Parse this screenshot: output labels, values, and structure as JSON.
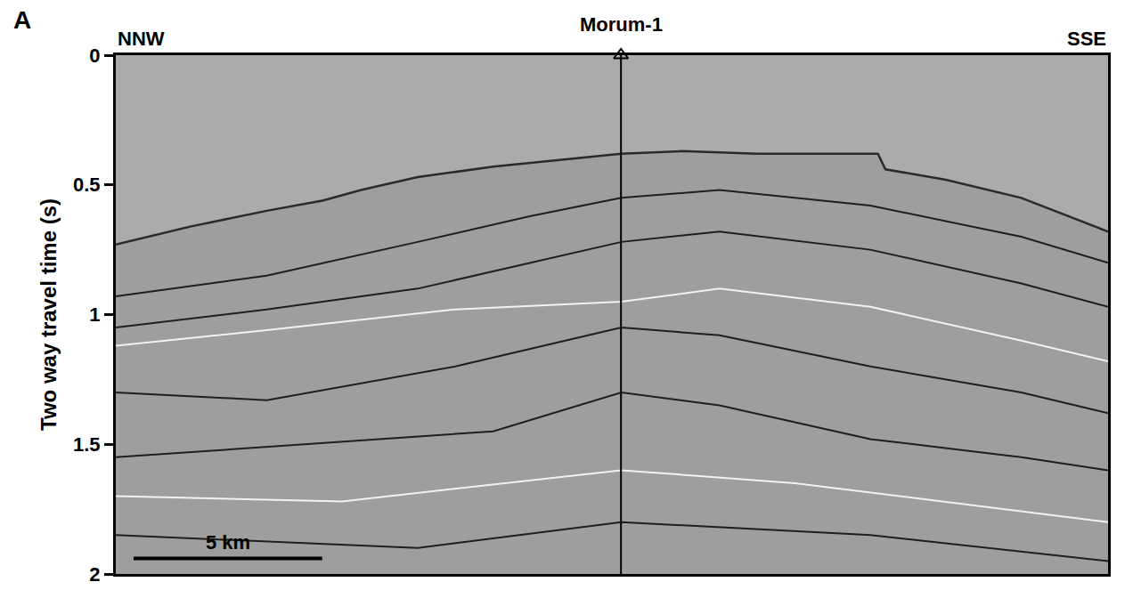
{
  "chart_data": {
    "type": "line",
    "panel_label": "A",
    "left_label": "NNW",
    "right_label": "SSE",
    "y_label": "Two way travel time (s)",
    "xlim": [
      0,
      26.3
    ],
    "ylim": [
      2,
      0
    ],
    "yticks": [
      0,
      0.5,
      1,
      1.5,
      2
    ],
    "tick_labels": "y",
    "grid": false,
    "well": {
      "name": "Morum-1",
      "x": 13.39
    },
    "scale_bar": {
      "label": "5 km",
      "x": [
        0.47,
        5.47
      ],
      "y": 1.94
    },
    "series": [
      {
        "color": "#2a2a2a",
        "x": [
          0,
          2,
          4,
          5.5,
          6.5,
          8,
          10,
          12,
          13.4,
          15,
          17,
          20.2,
          20.4,
          22,
          24,
          26.3
        ],
        "values": [
          0.73,
          0.66,
          0.6,
          0.56,
          0.52,
          0.47,
          0.43,
          0.4,
          0.38,
          0.37,
          0.38,
          0.38,
          0.44,
          0.48,
          0.55,
          0.68
        ]
      },
      {
        "color": "#1e1e1e",
        "x": [
          0,
          4,
          8,
          11,
          13.4,
          16,
          20,
          24,
          26.3
        ],
        "values": [
          0.93,
          0.85,
          0.72,
          0.62,
          0.55,
          0.52,
          0.58,
          0.7,
          0.8
        ]
      },
      {
        "color": "#1e1e1e",
        "x": [
          0,
          4,
          8,
          11,
          13.4,
          16,
          20,
          24,
          26.3
        ],
        "values": [
          1.05,
          0.98,
          0.9,
          0.8,
          0.72,
          0.68,
          0.75,
          0.88,
          0.97
        ]
      },
      {
        "color": "#f2f2f2",
        "x": [
          0,
          4,
          9,
          13.4,
          16,
          20,
          24,
          26.3
        ],
        "values": [
          1.12,
          1.06,
          0.98,
          0.95,
          0.9,
          0.97,
          1.1,
          1.18
        ]
      },
      {
        "color": "#1e1e1e",
        "x": [
          0,
          4,
          9,
          13.4,
          16,
          20,
          24,
          26.3
        ],
        "values": [
          1.3,
          1.33,
          1.2,
          1.05,
          1.08,
          1.2,
          1.3,
          1.38
        ]
      },
      {
        "color": "#1e1e1e",
        "x": [
          0,
          5,
          10,
          13.4,
          16,
          20,
          24,
          26.3
        ],
        "values": [
          1.55,
          1.5,
          1.45,
          1.3,
          1.35,
          1.48,
          1.55,
          1.6
        ]
      },
      {
        "color": "#f2f2f2",
        "x": [
          0,
          6,
          13.4,
          18,
          26.3
        ],
        "values": [
          1.7,
          1.72,
          1.6,
          1.65,
          1.8
        ]
      },
      {
        "color": "#1e1e1e",
        "x": [
          0,
          8,
          13.4,
          20,
          26.3
        ],
        "values": [
          1.85,
          1.9,
          1.8,
          1.85,
          1.95
        ]
      }
    ]
  }
}
